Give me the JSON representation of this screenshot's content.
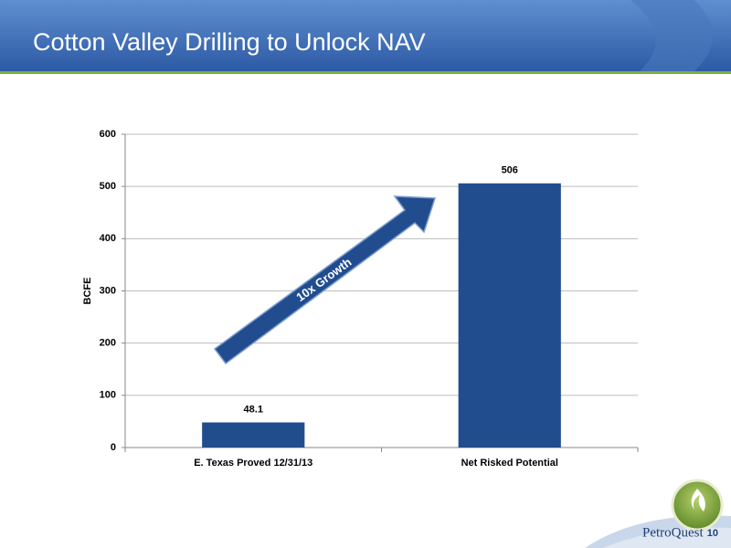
{
  "slide": {
    "page_number": 10,
    "logo_text": "PetroQuest"
  },
  "chart_data": {
    "type": "bar",
    "title": "Cotton Valley Drilling to Unlock NAV",
    "categories": [
      "E. Texas Proved 12/31/13",
      "Net Risked Potential"
    ],
    "values": [
      48.1,
      506
    ],
    "value_labels": [
      "48.1",
      "506"
    ],
    "color": "#214d8f",
    "ylabel": "BCFE",
    "ylim": [
      0,
      600
    ],
    "yticks": [
      0,
      100,
      200,
      300,
      400,
      500,
      600
    ],
    "grid": true,
    "annotation": "10x Growth"
  }
}
